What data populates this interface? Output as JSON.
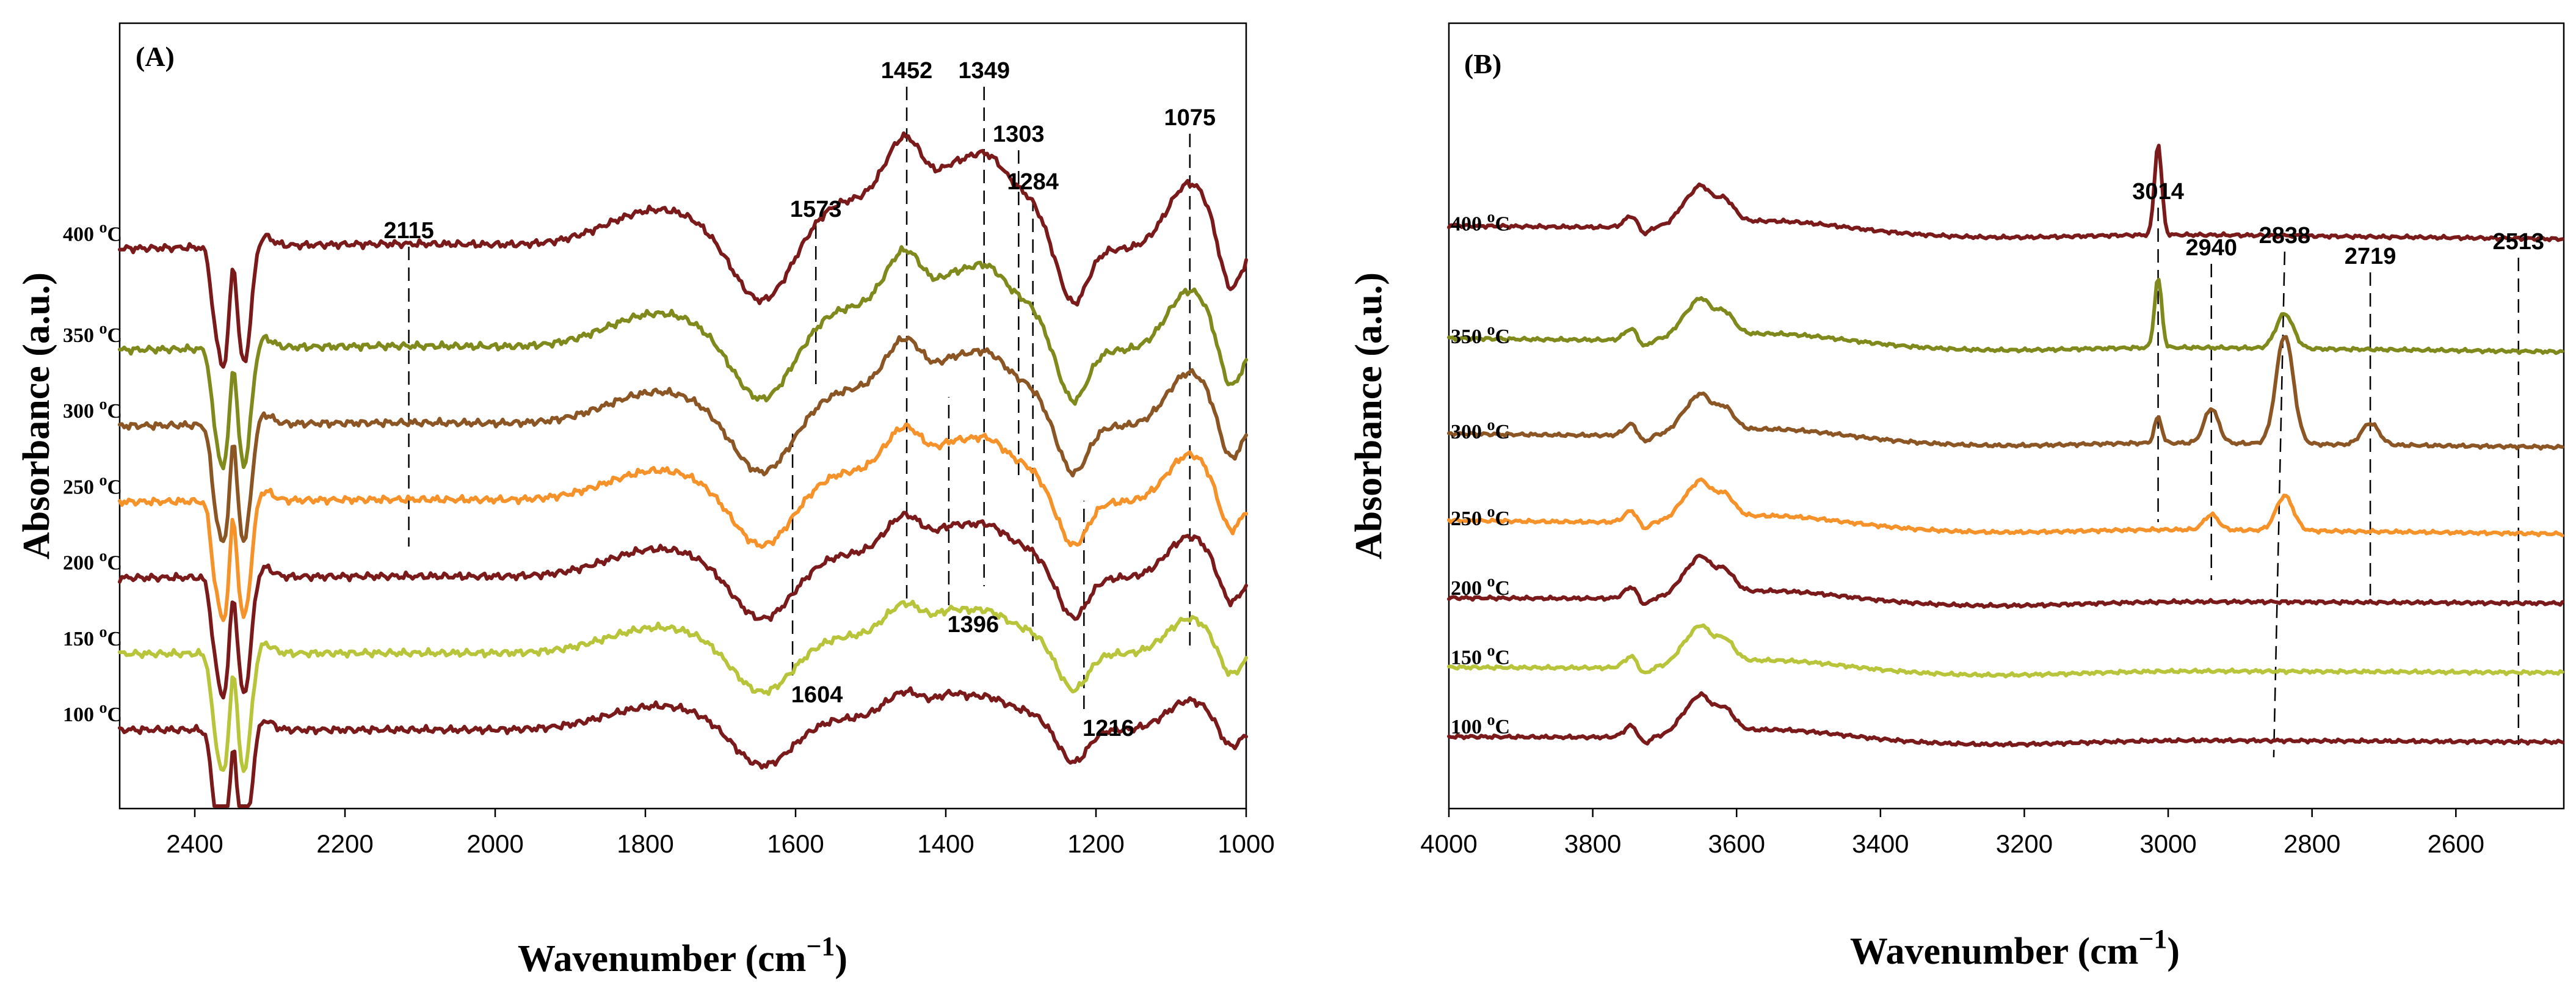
{
  "chart_data": [
    {
      "type": "line",
      "panel": "(A)",
      "xlabel": "Wavenumber (cm",
      "xlabel_sup": "−1",
      "xlabel_close": ")",
      "ylabel": "Absorbance (a.u.)",
      "xlim": [
        2500,
        1000
      ],
      "x_reversed": true,
      "xticks": [
        2400,
        2200,
        2000,
        1800,
        1600,
        1400,
        1200,
        1000
      ],
      "series": [
        {
          "name": "100 °C",
          "temp": "100",
          "color": "#7a1a1a",
          "offset": 0.0
        },
        {
          "name": "150 °C",
          "temp": "150",
          "color": "#b8c43a",
          "offset": 0.9
        },
        {
          "name": "200 °C",
          "temp": "200",
          "color": "#7a1a1a",
          "offset": 1.8
        },
        {
          "name": "250 °C",
          "temp": "250",
          "color": "#f5922a",
          "offset": 2.7
        },
        {
          "name": "300 °C",
          "temp": "300",
          "color": "#8b5524",
          "offset": 3.6
        },
        {
          "name": "350 °C",
          "temp": "350",
          "color": "#808a1c",
          "offset": 4.5
        },
        {
          "name": "400 °C",
          "temp": "400",
          "color": "#7a1a1a",
          "offset": 5.7
        }
      ],
      "peaks": [
        {
          "label": "2115",
          "x": 2115,
          "pos": "top"
        },
        {
          "label": "1604",
          "x": 1604,
          "pos": "bottom"
        },
        {
          "label": "1573",
          "x": 1573,
          "pos": "top"
        },
        {
          "label": "1452",
          "x": 1452,
          "pos": "top"
        },
        {
          "label": "1396",
          "x": 1396,
          "pos": "bottom"
        },
        {
          "label": "1349",
          "x": 1349,
          "pos": "top"
        },
        {
          "label": "1303",
          "x": 1303,
          "pos": "top"
        },
        {
          "label": "1284",
          "x": 1284,
          "pos": "top"
        },
        {
          "label": "1216",
          "x": 1216,
          "pos": "bottom"
        },
        {
          "label": "1075",
          "x": 1075,
          "pos": "top"
        }
      ]
    },
    {
      "type": "line",
      "panel": "(B)",
      "xlabel": "Wavenumber (cm",
      "xlabel_sup": "−1",
      "xlabel_close": ")",
      "ylabel": "Absorbance (a.u.)",
      "xlim": [
        4000,
        2450
      ],
      "x_reversed": true,
      "xticks": [
        4000,
        3800,
        3600,
        3400,
        3200,
        3000,
        2800,
        2600
      ],
      "series": [
        {
          "name": "100 °C",
          "temp": "100",
          "color": "#7a1a1a",
          "offset": 0.0
        },
        {
          "name": "150 °C",
          "temp": "150",
          "color": "#b8c43a",
          "offset": 0.8
        },
        {
          "name": "200 °C",
          "temp": "200",
          "color": "#7a1a1a",
          "offset": 1.6
        },
        {
          "name": "250 °C",
          "temp": "250",
          "color": "#f5922a",
          "offset": 2.4
        },
        {
          "name": "300 °C",
          "temp": "300",
          "color": "#8b5524",
          "offset": 3.4
        },
        {
          "name": "350 °C",
          "temp": "350",
          "color": "#808a1c",
          "offset": 4.5
        },
        {
          "name": "400 °C",
          "temp": "400",
          "color": "#7a1a1a",
          "offset": 5.8
        }
      ],
      "peaks": [
        {
          "label": "3014",
          "x": 3014,
          "pos": "top"
        },
        {
          "label": "2940",
          "x": 2940,
          "pos": "top"
        },
        {
          "label": "2838",
          "x": 2838,
          "pos": "top"
        },
        {
          "label": "2719",
          "x": 2719,
          "pos": "top"
        },
        {
          "label": "2513",
          "x": 2513,
          "pos": "top"
        }
      ]
    }
  ],
  "degree_unit": "C",
  "degree_sup": "o"
}
